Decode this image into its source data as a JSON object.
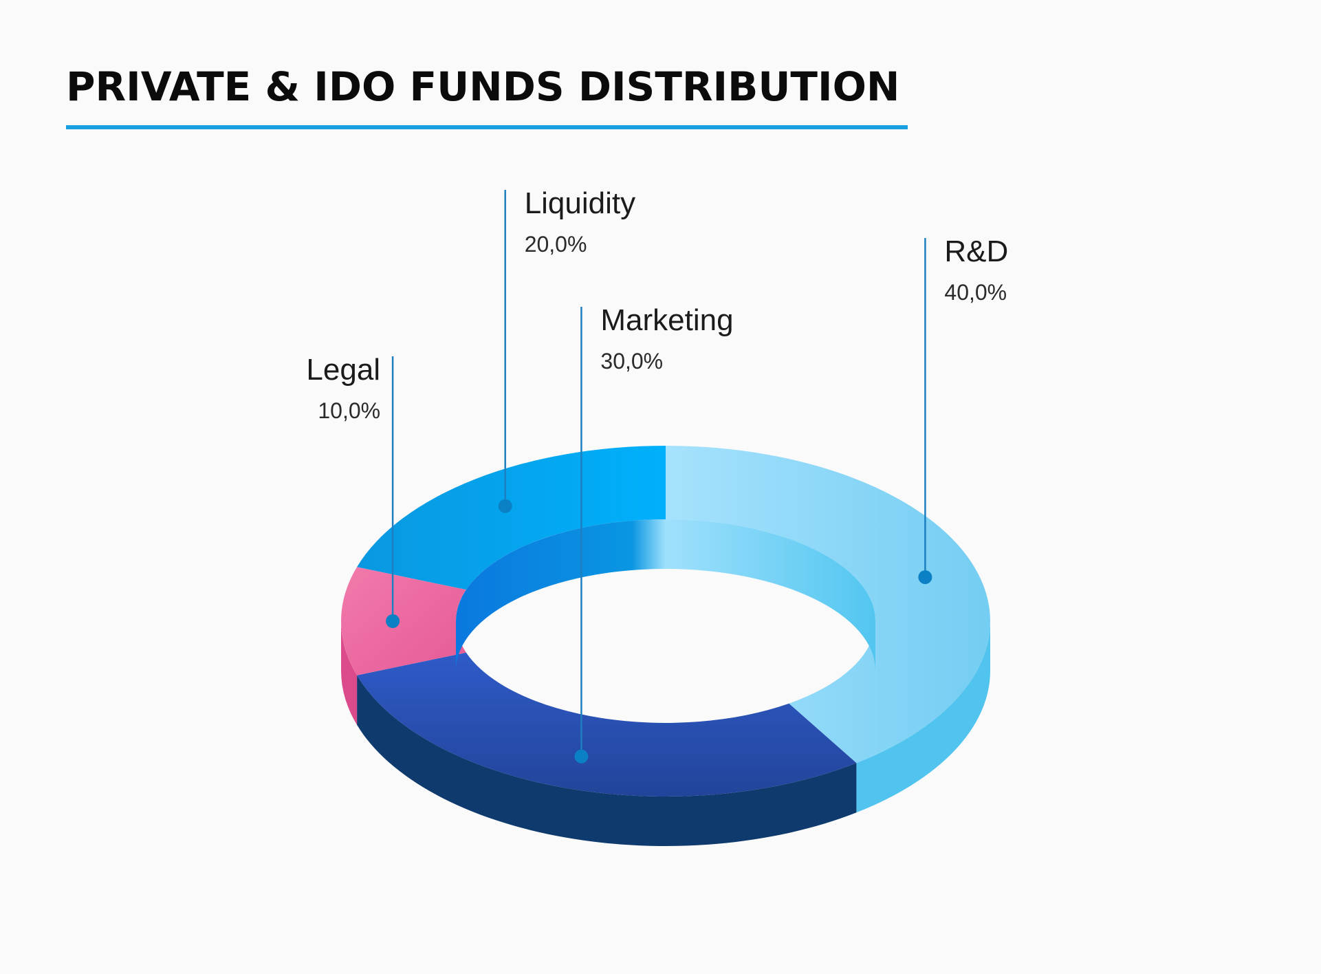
{
  "chart_data": {
    "type": "pie",
    "title": "PRIVATE & IDO FUNDS DISTRIBUTION",
    "slices": [
      {
        "label": "R&D",
        "value_text": "40,0%",
        "value": 40,
        "color": "#8ad6f5"
      },
      {
        "label": "Marketing",
        "value_text": "30,0%",
        "value": 30,
        "color": "#2a4fb0"
      },
      {
        "label": "Legal",
        "value_text": "10,0%",
        "value": 10,
        "color": "#ea6aa0"
      },
      {
        "label": "Liquidity",
        "value_text": "20,0%",
        "value": 20,
        "color": "#0ba3ec"
      }
    ],
    "style": "3d-donut",
    "legend": "none"
  },
  "colors": {
    "title_rule": "#1a9fe0",
    "leader_line": "#1d7fc0",
    "leader_dot": "#0b80c4"
  }
}
